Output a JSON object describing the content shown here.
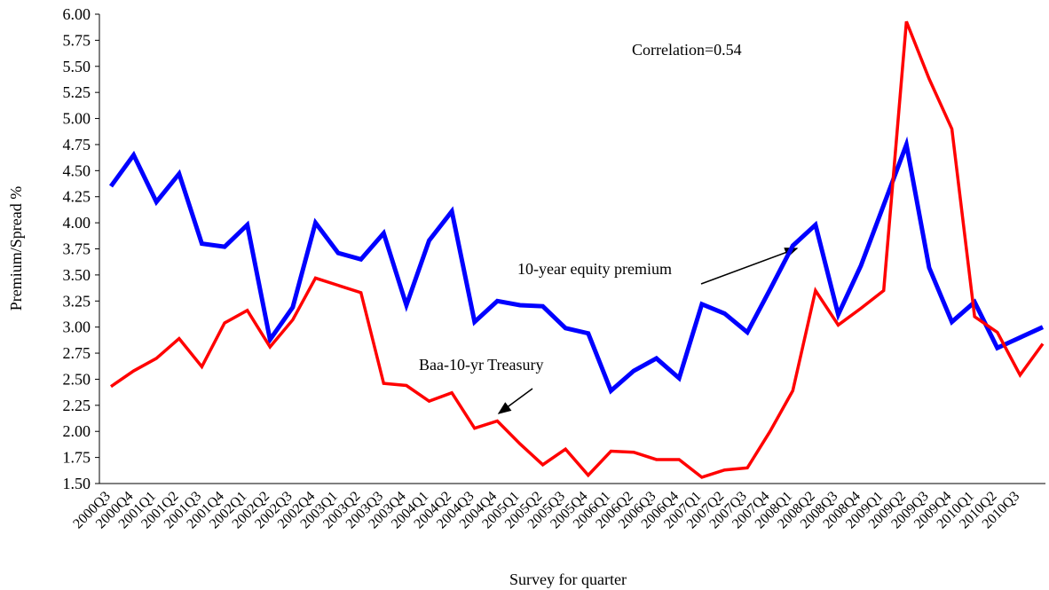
{
  "chart_data": {
    "type": "line",
    "y_label": "Premium/Spread %",
    "x_label": "Survey for quarter",
    "annotation": "Correlation=0.54",
    "categories": [
      "2000Q3",
      "2000Q4",
      "2001Q1",
      "2001Q2",
      "2001Q3",
      "2001Q4",
      "2002Q1",
      "2002Q2",
      "2002Q3",
      "2002Q4",
      "2003Q1",
      "2003Q2",
      "2003Q3",
      "2003Q4",
      "2004Q1",
      "2004Q2",
      "2004Q3",
      "2004Q4",
      "2005Q1",
      "2005Q2",
      "2005Q3",
      "2005Q4",
      "2006Q1",
      "2006Q2",
      "2006Q3",
      "2006Q4",
      "2007Q1",
      "2007Q2",
      "2007Q3",
      "2007Q4",
      "2008Q1",
      "2008Q2",
      "2008Q3",
      "2008Q4",
      "2009Q1",
      "2009Q2",
      "2009Q3",
      "2009Q4",
      "2010Q1",
      "2010Q2",
      "2010Q3",
      null
    ],
    "series": [
      {
        "name": "10-year equity premium",
        "color": "#0000ff",
        "values": [
          4.35,
          4.65,
          4.2,
          4.47,
          3.8,
          3.77,
          3.98,
          2.88,
          3.19,
          4.0,
          3.71,
          3.65,
          3.9,
          3.21,
          3.83,
          4.11,
          3.05,
          3.25,
          3.21,
          3.2,
          2.99,
          2.94,
          2.39,
          2.58,
          2.7,
          2.51,
          3.22,
          3.13,
          2.95,
          3.36,
          3.78,
          3.98,
          3.12,
          3.59,
          4.17,
          4.75,
          3.57,
          3.05,
          3.24,
          2.8,
          2.9,
          3.0
        ]
      },
      {
        "name": "Baa-10-yr Treasury",
        "color": "#ff0000",
        "values": [
          2.43,
          2.58,
          2.7,
          2.89,
          2.62,
          3.04,
          3.16,
          2.81,
          3.07,
          3.47,
          3.4,
          3.33,
          2.46,
          2.44,
          2.29,
          2.37,
          2.03,
          2.1,
          1.88,
          1.68,
          1.83,
          1.58,
          1.81,
          1.8,
          1.73,
          1.73,
          1.56,
          1.63,
          1.65,
          2.0,
          2.39,
          3.35,
          3.02,
          3.18,
          3.35,
          5.93,
          5.38,
          4.9,
          3.1,
          2.95,
          2.54,
          2.84
        ]
      }
    ],
    "ylim": [
      1.5,
      6.0
    ],
    "yticks": [
      {
        "value": 1.5,
        "label": "1.50"
      },
      {
        "value": 1.75,
        "label": "1.75"
      },
      {
        "value": 2.0,
        "label": "2.00"
      },
      {
        "value": 2.25,
        "label": "2.25"
      },
      {
        "value": 2.5,
        "label": "2.50"
      },
      {
        "value": 2.75,
        "label": "2.75"
      },
      {
        "value": 3.0,
        "label": "3.00"
      },
      {
        "value": 3.25,
        "label": "3.25"
      },
      {
        "value": 3.5,
        "label": "3.50"
      },
      {
        "value": 3.75,
        "label": "3.75"
      },
      {
        "value": 4.0,
        "label": "4.00"
      },
      {
        "value": 4.25,
        "label": "4.25"
      },
      {
        "value": 4.5,
        "label": "4.50"
      },
      {
        "value": 4.75,
        "label": "4.75"
      },
      {
        "value": 5.0,
        "label": "5.00"
      },
      {
        "value": 5.25,
        "label": "5.25"
      },
      {
        "value": 5.5,
        "label": "5.50"
      },
      {
        "value": 5.75,
        "label": "5.75"
      },
      {
        "value": 6.0,
        "label": "6.00"
      }
    ],
    "grid": false
  }
}
